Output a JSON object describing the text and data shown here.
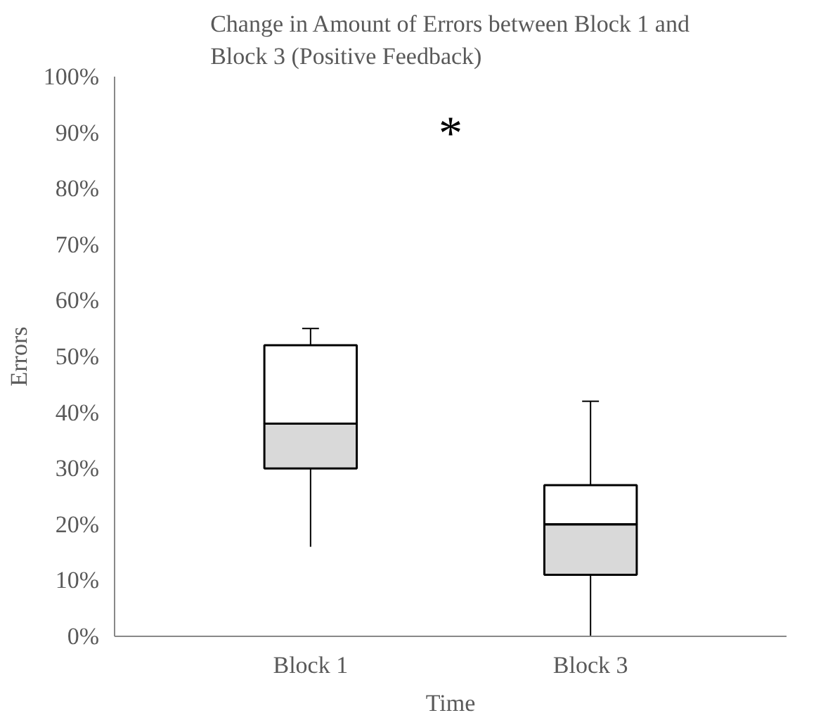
{
  "chart_data": {
    "type": "box",
    "title": "Change in Amount of Errors between Block 1 and Block 3 (Positive Feedback)",
    "xlabel": "Time",
    "ylabel": "Errors",
    "categories": [
      "Block 1",
      "Block 3"
    ],
    "boxes": [
      {
        "low": 16,
        "q1": 30,
        "median": 38,
        "q3": 52,
        "high": 55
      },
      {
        "low": 0,
        "q1": 11,
        "median": 20,
        "q3": 27,
        "high": 42
      }
    ],
    "color": "#d9d9d9",
    "ylim": [
      0,
      100
    ],
    "yticks": [
      {
        "value": 0,
        "label": "0%"
      },
      {
        "value": 10,
        "label": "10%"
      },
      {
        "value": 20,
        "label": "20%"
      },
      {
        "value": 30,
        "label": "30%"
      },
      {
        "value": 40,
        "label": "40%"
      },
      {
        "value": 50,
        "label": "50%"
      },
      {
        "value": 60,
        "label": "60%"
      },
      {
        "value": 70,
        "label": "70%"
      },
      {
        "value": 80,
        "label": "80%"
      },
      {
        "value": 90,
        "label": "90%"
      },
      {
        "value": 100,
        "label": "100%"
      }
    ],
    "annotations": [
      "*"
    ],
    "grid": false
  }
}
